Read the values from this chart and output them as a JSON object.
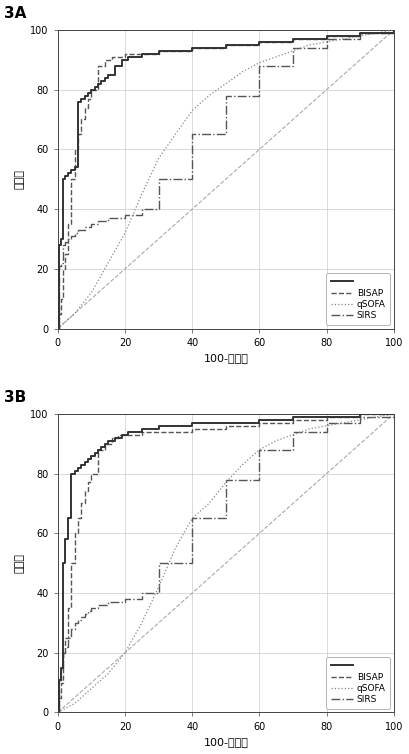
{
  "panel_labels": [
    "3A",
    "3B"
  ],
  "xlabel": "100-特异性",
  "ylabel": "敏感性",
  "xlim": [
    0,
    100
  ],
  "ylim": [
    0,
    100
  ],
  "xticks": [
    0,
    20,
    40,
    60,
    80,
    100
  ],
  "yticks": [
    0,
    20,
    40,
    60,
    80,
    100
  ],
  "panel_A": {
    "model_x": [
      0,
      0.5,
      1,
      1.5,
      2,
      3,
      4,
      5,
      6,
      7,
      8,
      9,
      10,
      11,
      12,
      13,
      14,
      15,
      17,
      19,
      21,
      25,
      30,
      40,
      50,
      60,
      70,
      80,
      90,
      95,
      100
    ],
    "model_y": [
      0,
      28,
      30,
      50,
      51,
      52,
      53,
      54,
      76,
      77,
      78,
      79,
      80,
      81,
      82,
      83,
      84,
      85,
      88,
      90,
      91,
      92,
      93,
      94,
      95,
      96,
      97,
      98,
      99,
      99,
      100
    ],
    "bisap_x": [
      0,
      0.5,
      1,
      1.5,
      2,
      3,
      4,
      5,
      6,
      7,
      8,
      9,
      10,
      12,
      14,
      16,
      18,
      20,
      25,
      30,
      40,
      50,
      60,
      70,
      80,
      90,
      100
    ],
    "bisap_y": [
      0,
      5,
      10,
      20,
      25,
      35,
      50,
      60,
      65,
      70,
      74,
      77,
      80,
      88,
      90,
      91,
      91,
      92,
      92,
      93,
      94,
      95,
      96,
      97,
      98,
      99,
      100
    ],
    "qsofa_x": [
      0,
      5,
      10,
      15,
      20,
      25,
      30,
      35,
      40,
      45,
      50,
      55,
      60,
      65,
      70,
      75,
      80,
      85,
      90,
      95,
      100
    ],
    "qsofa_y": [
      0,
      5,
      12,
      22,
      32,
      45,
      57,
      65,
      73,
      78,
      82,
      86,
      89,
      91,
      93,
      95,
      96,
      97,
      98,
      99,
      100
    ],
    "sirs_x": [
      0,
      0.5,
      1,
      1.5,
      2,
      3,
      4,
      5,
      6,
      7,
      8,
      9,
      10,
      12,
      15,
      20,
      25,
      30,
      40,
      50,
      60,
      70,
      80,
      90,
      100
    ],
    "sirs_y": [
      0,
      21,
      22,
      28,
      29,
      30,
      31,
      32,
      33,
      33,
      34,
      34,
      35,
      36,
      37,
      38,
      40,
      50,
      65,
      78,
      88,
      94,
      97,
      99,
      100
    ]
  },
  "panel_B": {
    "model_x": [
      0,
      0.5,
      1,
      1.5,
      2,
      3,
      4,
      5,
      6,
      7,
      8,
      9,
      10,
      11,
      12,
      13,
      14,
      15,
      17,
      19,
      21,
      25,
      30,
      40,
      50,
      60,
      70,
      80,
      90,
      95,
      100
    ],
    "model_y": [
      0,
      11,
      15,
      50,
      58,
      65,
      80,
      81,
      82,
      83,
      84,
      85,
      86,
      87,
      88,
      89,
      90,
      91,
      92,
      93,
      94,
      95,
      96,
      97,
      97,
      98,
      99,
      99,
      100,
      100,
      100
    ],
    "bisap_x": [
      0,
      0.5,
      1,
      1.5,
      2,
      3,
      4,
      5,
      6,
      7,
      8,
      9,
      10,
      12,
      14,
      16,
      18,
      20,
      25,
      30,
      40,
      50,
      60,
      70,
      80,
      90,
      100
    ],
    "bisap_y": [
      0,
      5,
      10,
      20,
      25,
      35,
      50,
      60,
      65,
      70,
      74,
      77,
      80,
      88,
      90,
      92,
      93,
      93,
      94,
      94,
      95,
      96,
      97,
      98,
      99,
      100,
      100
    ],
    "qsofa_x": [
      0,
      5,
      10,
      15,
      20,
      25,
      30,
      35,
      40,
      45,
      50,
      55,
      60,
      65,
      70,
      75,
      80,
      85,
      90,
      95,
      100
    ],
    "qsofa_y": [
      0,
      3,
      8,
      13,
      20,
      30,
      42,
      55,
      65,
      70,
      77,
      83,
      88,
      91,
      93,
      95,
      96,
      97,
      98,
      99,
      100
    ],
    "sirs_x": [
      0,
      0.5,
      1,
      1.5,
      2,
      3,
      4,
      5,
      6,
      7,
      8,
      9,
      10,
      12,
      15,
      20,
      25,
      30,
      40,
      50,
      60,
      70,
      80,
      90,
      100
    ],
    "sirs_y": [
      0,
      11,
      15,
      20,
      22,
      25,
      28,
      30,
      31,
      32,
      33,
      34,
      35,
      36,
      37,
      38,
      40,
      50,
      65,
      78,
      88,
      94,
      97,
      99,
      100
    ]
  },
  "model_color": "#333333",
  "bisap_color": "#555555",
  "qsofa_color": "#888888",
  "sirs_color": "#555555",
  "diag_color": "#aaaaaa",
  "model_lw": 1.4,
  "bisap_lw": 1.0,
  "qsofa_lw": 0.9,
  "sirs_lw": 1.0,
  "diag_lw": 0.8,
  "grid_color": "#cccccc",
  "grid_lw": 0.5,
  "bg_color": "#ffffff"
}
